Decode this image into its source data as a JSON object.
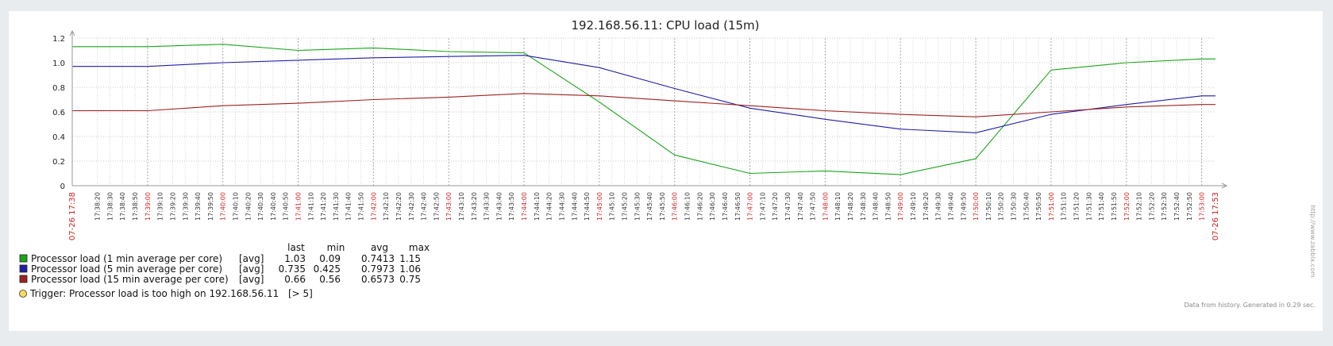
{
  "page": {
    "background": "#e9ecef",
    "panel_background": "#ffffff"
  },
  "chart_data": {
    "type": "line",
    "title": "192.168.56.11: CPU load (15m)",
    "ylim": [
      0,
      1.2
    ],
    "yticks": [
      "0",
      "0.2",
      "0.4",
      "0.6",
      "0.8",
      "1.0",
      "1.2"
    ],
    "x_start_label": "07-26 17:38",
    "x_end_label": "07-26 17:53",
    "x_tick_labels": [
      "17:38:20",
      "17:38:30",
      "17:38:40",
      "17:38:50",
      "17:39:00",
      "17:39:10",
      "17:39:20",
      "17:39:30",
      "17:39:40",
      "17:39:50",
      "17:40:00",
      "17:40:10",
      "17:40:20",
      "17:40:30",
      "17:40:40",
      "17:40:50",
      "17:41:00",
      "17:41:10",
      "17:41:20",
      "17:41:30",
      "17:41:40",
      "17:41:50",
      "17:42:00",
      "17:42:10",
      "17:42:20",
      "17:42:30",
      "17:42:40",
      "17:42:50",
      "17:43:00",
      "17:43:10",
      "17:43:20",
      "17:43:30",
      "17:43:40",
      "17:43:50",
      "17:44:00",
      "17:44:10",
      "17:44:20",
      "17:44:30",
      "17:44:40",
      "17:44:50",
      "17:45:00",
      "17:45:10",
      "17:45:20",
      "17:45:30",
      "17:45:40",
      "17:45:50",
      "17:46:00",
      "17:46:10",
      "17:46:20",
      "17:46:30",
      "17:46:40",
      "17:46:50",
      "17:47:00",
      "17:47:10",
      "17:47:20",
      "17:47:30",
      "17:47:40",
      "17:47:50",
      "17:48:00",
      "17:48:10",
      "17:48:20",
      "17:48:30",
      "17:48:40",
      "17:48:50",
      "17:49:00",
      "17:49:10",
      "17:49:20",
      "17:49:30",
      "17:49:40",
      "17:49:50",
      "17:50:00",
      "17:50:10",
      "17:50:20",
      "17:50:30",
      "17:50:40",
      "17:50:50",
      "17:51:00",
      "17:51:10",
      "17:51:20",
      "17:51:30",
      "17:51:40",
      "17:51:50",
      "17:52:00",
      "17:52:10",
      "17:52:20",
      "17:52:30",
      "17:52:40",
      "17:52:50",
      "17:53:00"
    ],
    "x_domain": [
      "17:38:00",
      "17:53:11"
    ],
    "series": [
      {
        "name": "Processor load (1 min average per core)",
        "color": "#1aa51a",
        "x": [
          "17:38:00",
          "17:39:00",
          "17:40:00",
          "17:41:00",
          "17:42:00",
          "17:43:00",
          "17:44:00",
          "17:45:00",
          "17:46:00",
          "17:47:00",
          "17:48:00",
          "17:49:00",
          "17:50:00",
          "17:51:00",
          "17:52:00",
          "17:53:00",
          "17:53:11"
        ],
        "y": [
          1.13,
          1.13,
          1.15,
          1.1,
          1.12,
          1.09,
          1.08,
          0.68,
          0.25,
          0.1,
          0.12,
          0.09,
          0.22,
          0.94,
          1.0,
          1.03,
          1.03
        ]
      },
      {
        "name": "Processor load (5 min average per core)",
        "color": "#1f1fa3",
        "x": [
          "17:38:00",
          "17:39:00",
          "17:40:00",
          "17:41:00",
          "17:42:00",
          "17:43:00",
          "17:44:00",
          "17:45:00",
          "17:46:00",
          "17:47:00",
          "17:48:00",
          "17:49:00",
          "17:50:00",
          "17:51:00",
          "17:52:00",
          "17:53:00",
          "17:53:11"
        ],
        "y": [
          0.97,
          0.97,
          1.0,
          1.02,
          1.04,
          1.05,
          1.06,
          0.96,
          0.79,
          0.63,
          0.54,
          0.46,
          0.43,
          0.58,
          0.66,
          0.73,
          0.73
        ]
      },
      {
        "name": "Processor load (15 min average per core)",
        "color": "#9e2020",
        "x": [
          "17:38:00",
          "17:39:00",
          "17:40:00",
          "17:41:00",
          "17:42:00",
          "17:43:00",
          "17:44:00",
          "17:45:00",
          "17:46:00",
          "17:47:00",
          "17:48:00",
          "17:49:00",
          "17:50:00",
          "17:51:00",
          "17:52:00",
          "17:53:00",
          "17:53:11"
        ],
        "y": [
          0.61,
          0.61,
          0.65,
          0.67,
          0.7,
          0.72,
          0.75,
          0.73,
          0.69,
          0.65,
          0.61,
          0.58,
          0.56,
          0.6,
          0.64,
          0.66,
          0.66
        ]
      }
    ],
    "legend": {
      "headers": [
        "last",
        "min",
        "avg",
        "max"
      ],
      "rows": [
        {
          "name": "Processor load (1 min average per core)",
          "func": "[avg]",
          "last": "1.03",
          "min": "0.09",
          "avg": "0.7413",
          "max": "1.15",
          "color": "#1aa51a"
        },
        {
          "name": "Processor load (5 min average per core)",
          "func": "[avg]",
          "last": "0.735",
          "min": "0.425",
          "avg": "0.7973",
          "max": "1.06",
          "color": "#1f1fa3"
        },
        {
          "name": "Processor load (15 min average per core)",
          "func": "[avg]",
          "last": "0.66",
          "min": "0.56",
          "avg": "0.6573",
          "max": "0.75",
          "color": "#9e2020"
        }
      ],
      "trigger": {
        "text": "Trigger: Processor load is too high on 192.168.56.11",
        "threshold": "[> 5]",
        "color": "#ffd95c"
      }
    },
    "footer": "Data from history. Generated in 0.29 sec.",
    "watermark": "http://www.zabbix.com",
    "grid": true
  }
}
